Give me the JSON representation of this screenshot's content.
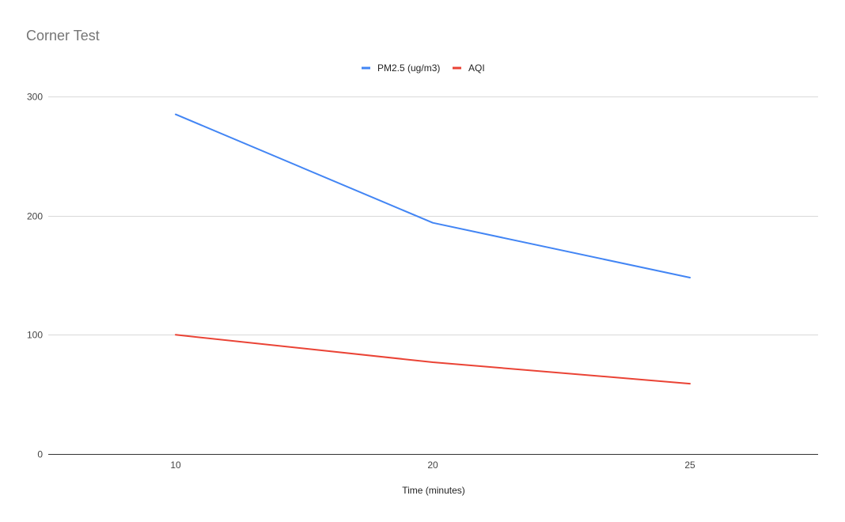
{
  "chart_data": {
    "type": "line",
    "title": "Corner Test",
    "xlabel": "Time (minutes)",
    "ylabel": "",
    "categories": [
      "10",
      "20",
      "25"
    ],
    "x": [
      10,
      20,
      25
    ],
    "ylim": [
      0,
      300
    ],
    "yticks": [
      0,
      100,
      200,
      300
    ],
    "grid": true,
    "legend_position": "top",
    "series": [
      {
        "name": "PM2.5 (ug/m3)",
        "color": "#4285f4",
        "values": [
          285,
          194,
          148
        ]
      },
      {
        "name": "AQI",
        "color": "#ea4335",
        "values": [
          100,
          77,
          59
        ]
      }
    ]
  }
}
